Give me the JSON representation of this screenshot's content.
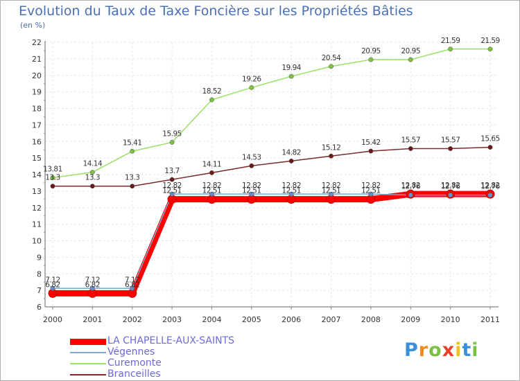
{
  "header": {
    "title": "Evolution du Taux de Taxe Foncière sur les Propriétés Bâties",
    "unit": "(en %)"
  },
  "logo": {
    "letters": [
      "P",
      "r",
      "o",
      "x",
      "i",
      "t",
      "i"
    ],
    "colors": [
      "#3a8fd6",
      "#f08a1c",
      "#7cc242",
      "#e8402a",
      "#f0c020",
      "#3a8fd6",
      "#7cc242"
    ]
  },
  "chart_data": {
    "type": "line",
    "categories": [
      "2000",
      "2001",
      "2002",
      "2003",
      "2004",
      "2005",
      "2006",
      "2007",
      "2008",
      "2009",
      "2010",
      "2011"
    ],
    "ylim": [
      6,
      22
    ],
    "yticks": [
      6,
      7,
      8,
      9,
      10,
      11,
      12,
      13,
      14,
      15,
      16,
      17,
      18,
      19,
      20,
      21,
      22
    ],
    "series": [
      {
        "name": "LA CHAPELLE-AUX-SAINTS",
        "color": "#ff0000",
        "values": [
          6.82,
          6.82,
          6.82,
          12.51,
          12.51,
          12.51,
          12.51,
          12.51,
          12.51,
          12.82,
          12.82,
          12.82
        ],
        "labels": [
          "6.82",
          "6.82",
          "6.82",
          "12.51",
          "12.51",
          "12.51",
          "12.51",
          "12.51",
          "12.51",
          "12.82",
          "12.82",
          "12.82"
        ]
      },
      {
        "name": "Végennes",
        "color": "#7fa7c9",
        "values": [
          7.12,
          7.12,
          7.12,
          12.82,
          12.82,
          12.82,
          12.82,
          12.82,
          12.82,
          12.76,
          12.76,
          12.76
        ],
        "labels": [
          "7.12",
          "7.12",
          "7.12",
          "12.82",
          "12.82",
          "12.82",
          "12.82",
          "12.82",
          "12.82",
          "12.76",
          "12.76",
          "12.76"
        ]
      },
      {
        "name": "Curemonte",
        "color": "#99e066",
        "values": [
          13.81,
          14.14,
          15.41,
          15.95,
          18.52,
          19.26,
          19.94,
          20.54,
          20.95,
          20.95,
          21.59,
          21.59
        ],
        "labels": [
          "13.81",
          "14.14",
          "15.41",
          "15.95",
          "18.52",
          "19.26",
          "19.94",
          "20.54",
          "20.95",
          "20.95",
          "21.59",
          "21.59"
        ]
      },
      {
        "name": "Branceilles",
        "color": "#7a2a2a",
        "values": [
          13.3,
          13.3,
          13.3,
          13.7,
          14.11,
          14.53,
          14.82,
          15.12,
          15.42,
          15.57,
          15.57,
          15.65
        ],
        "labels": [
          "13.3",
          "13.3",
          "13.3",
          "13.7",
          "14.11",
          "14.53",
          "14.82",
          "15.12",
          "15.42",
          "15.57",
          "15.57",
          "15.65"
        ]
      }
    ]
  }
}
